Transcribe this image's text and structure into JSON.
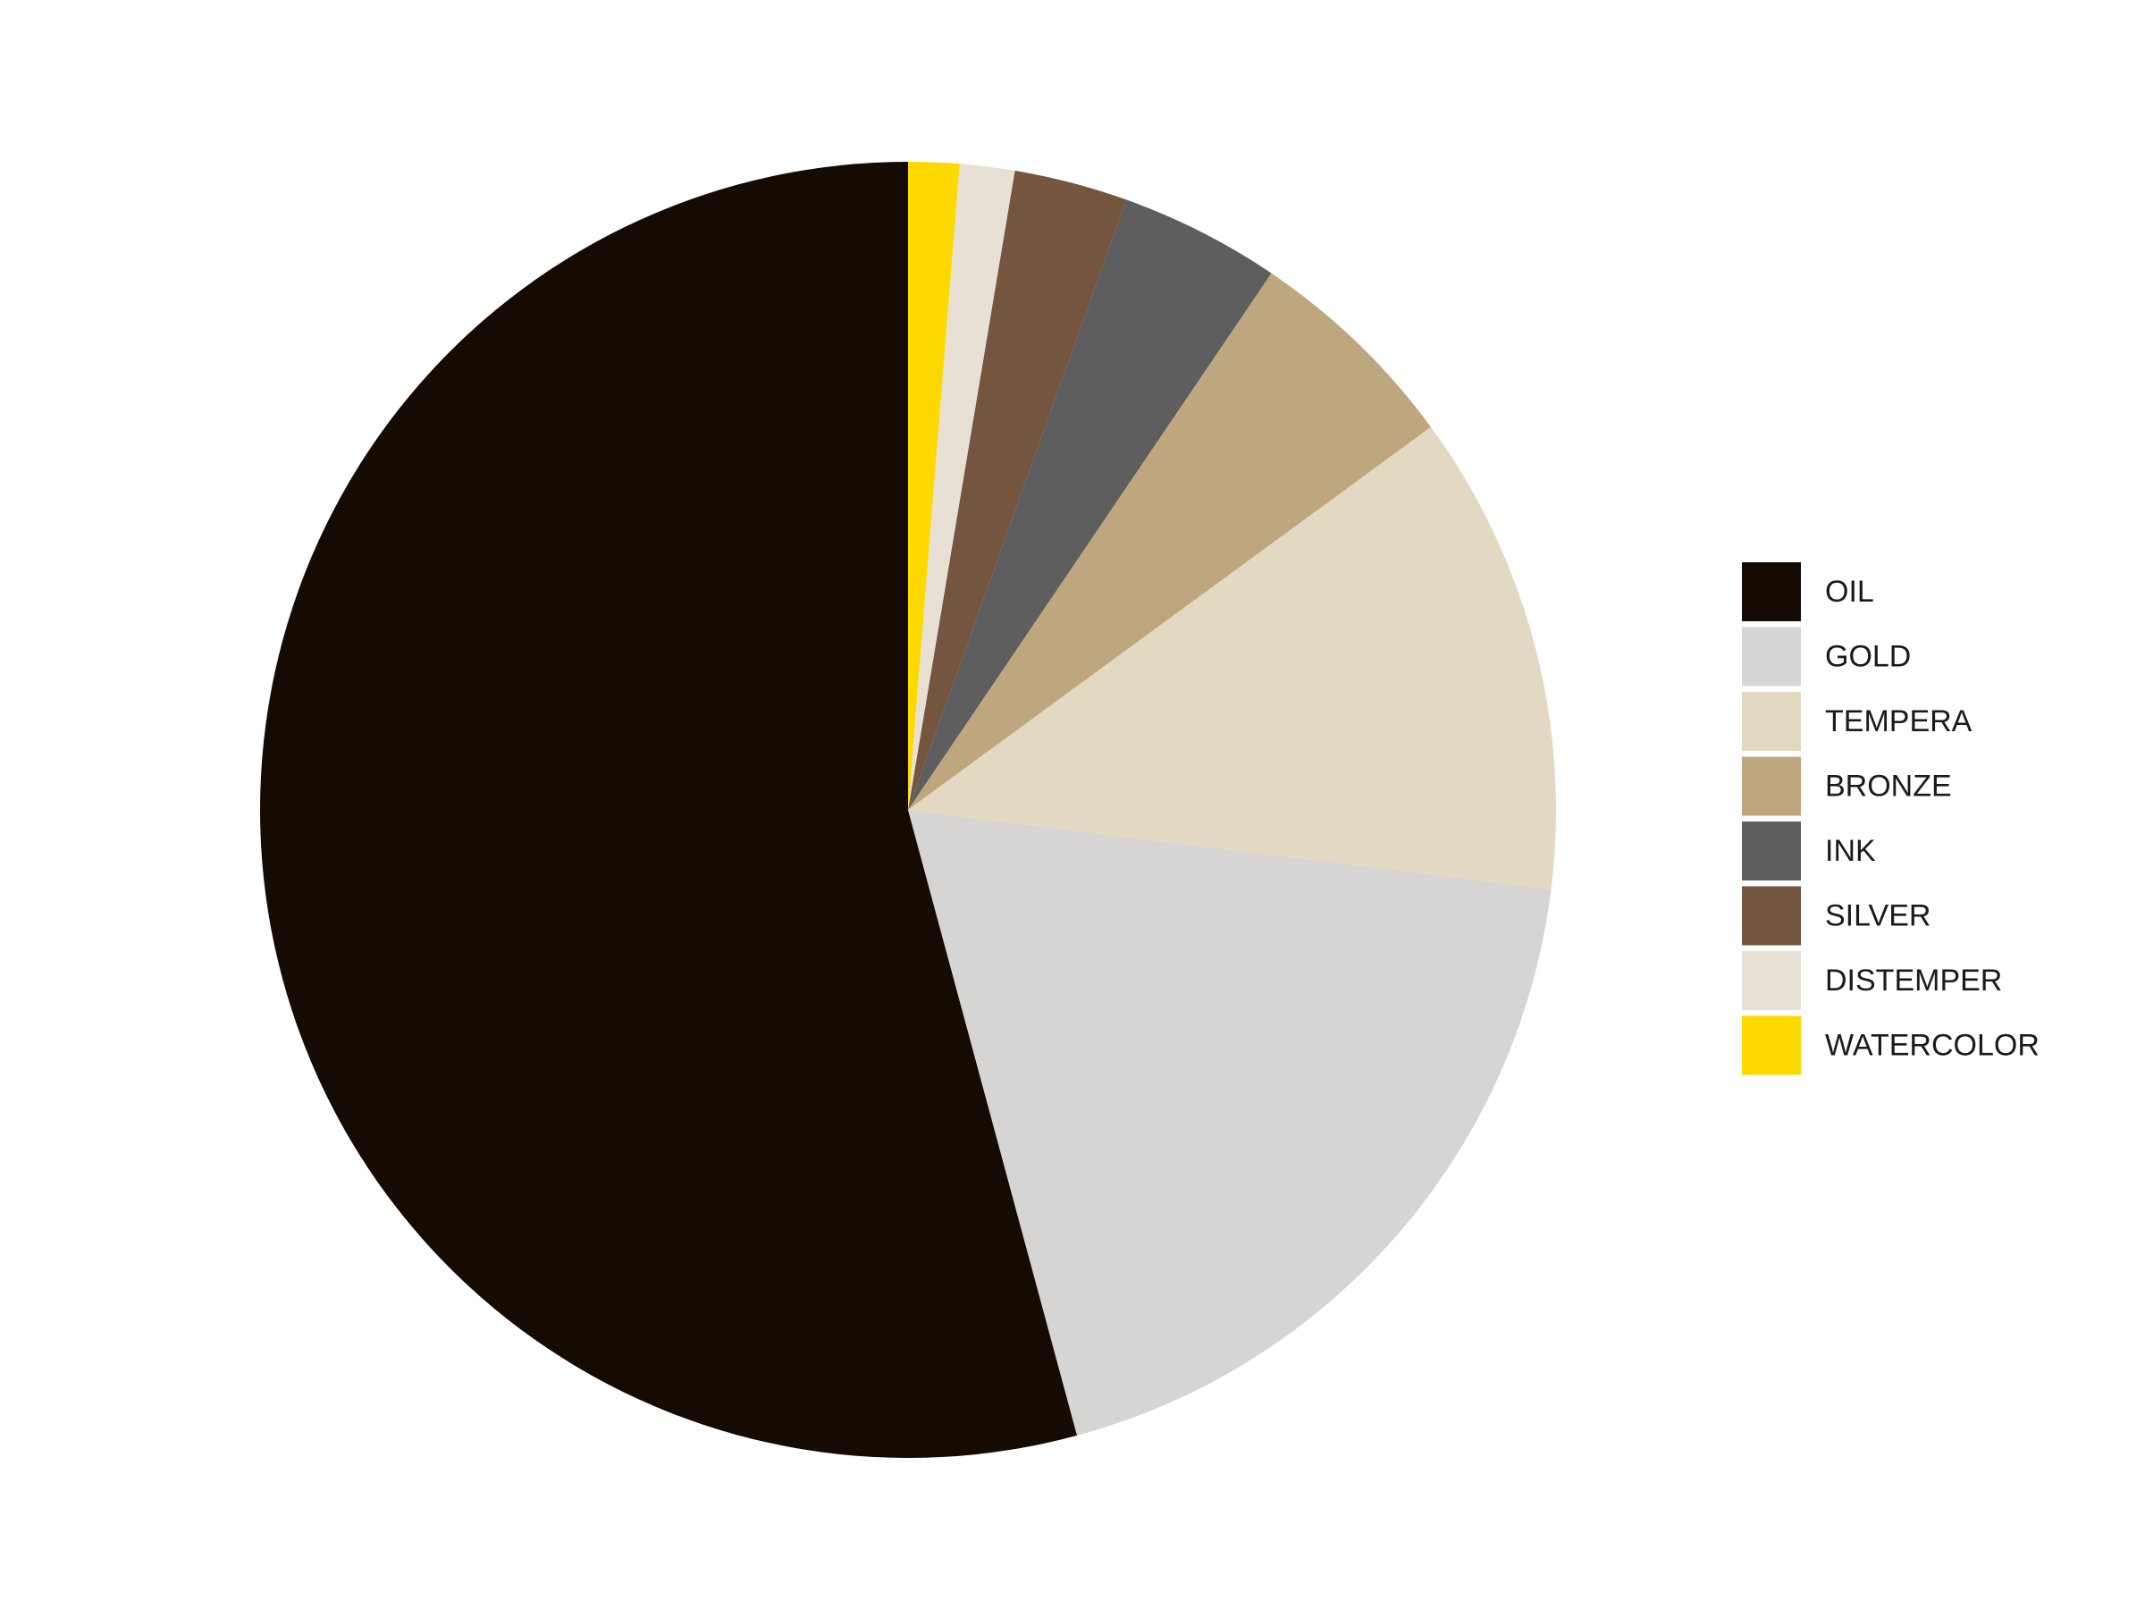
{
  "chart_data": {
    "type": "pie",
    "title": "",
    "start": "12 o'clock",
    "direction": "counterclockwise",
    "legend_position": "right",
    "slices": [
      {
        "label": "OIL",
        "value": 55.5,
        "color": "#150B02"
      },
      {
        "label": "GOLD",
        "value": 19.3,
        "color": "#D6D5D3"
      },
      {
        "label": "TEMPERA",
        "value": 12.3,
        "color": "#E3D9C2"
      },
      {
        "label": "BRONZE",
        "value": 5.6,
        "color": "#BEA77F"
      },
      {
        "label": "INK",
        "value": 4.1,
        "color": "#5E5E5E"
      },
      {
        "label": "SILVER",
        "value": 2.9,
        "color": "#745540"
      },
      {
        "label": "DISTEMPER",
        "value": 1.4,
        "color": "#E8E0D4"
      },
      {
        "label": "WATERCOLOR",
        "value": 1.3,
        "color": "#FDD900"
      }
    ]
  }
}
